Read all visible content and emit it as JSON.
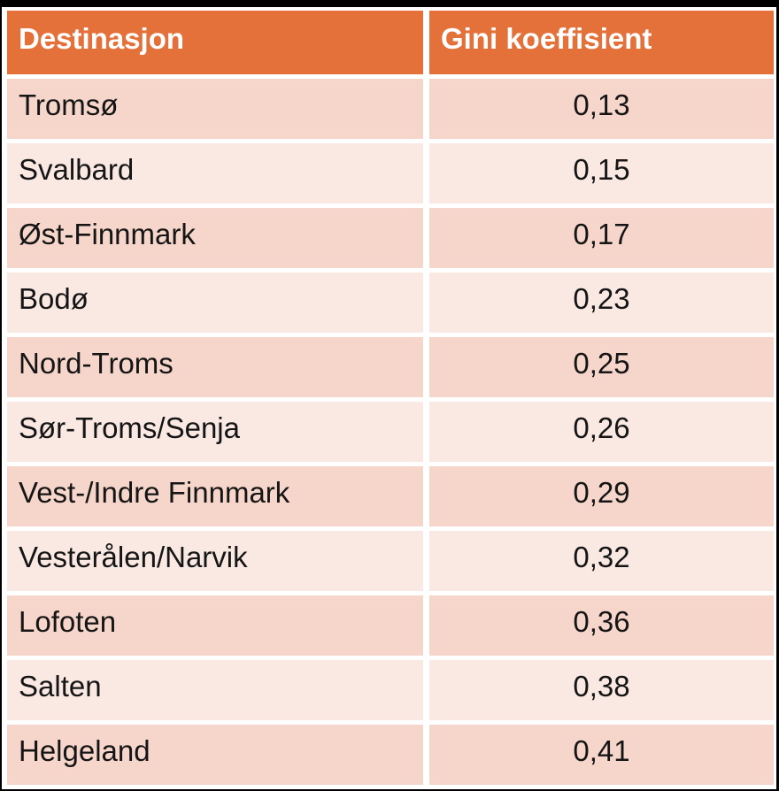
{
  "colors": {
    "header_bg": "#E5713A",
    "header_text": "#FFFFFF",
    "row_odd_bg": "#F6D5CA",
    "row_even_bg": "#FAE8E3",
    "cell_text": "#151515",
    "frame": "#000000"
  },
  "chart_data": {
    "type": "table",
    "columns": [
      "Destinasjon",
      "Gini koeffisient"
    ],
    "rows": [
      [
        "Tromsø",
        "0,13"
      ],
      [
        "Svalbard",
        "0,15"
      ],
      [
        "Øst-Finnmark",
        "0,17"
      ],
      [
        "Bodø",
        "0,23"
      ],
      [
        "Nord-Troms",
        "0,25"
      ],
      [
        "Sør-Troms/Senja",
        "0,26"
      ],
      [
        "Vest-/Indre Finnmark",
        "0,29"
      ],
      [
        "Vesterålen/Narvik",
        "0,32"
      ],
      [
        "Lofoten",
        "0,36"
      ],
      [
        "Salten",
        "0,38"
      ],
      [
        "Helgeland",
        "0,41"
      ]
    ],
    "gini_values_numeric": [
      0.13,
      0.15,
      0.17,
      0.23,
      0.25,
      0.26,
      0.29,
      0.32,
      0.36,
      0.38,
      0.41
    ]
  },
  "table": {
    "header": {
      "destination": "Destinasjon",
      "gini": "Gini koeffisient"
    },
    "rows": [
      {
        "destination": "Tromsø",
        "gini": "0,13"
      },
      {
        "destination": "Svalbard",
        "gini": "0,15"
      },
      {
        "destination": "Øst-Finnmark",
        "gini": "0,17"
      },
      {
        "destination": "Bodø",
        "gini": "0,23"
      },
      {
        "destination": "Nord-Troms",
        "gini": "0,25"
      },
      {
        "destination": "Sør-Troms/Senja",
        "gini": "0,26"
      },
      {
        "destination": "Vest-/Indre Finnmark",
        "gini": "0,29"
      },
      {
        "destination": "Vesterålen/Narvik",
        "gini": "0,32"
      },
      {
        "destination": "Lofoten",
        "gini": "0,36"
      },
      {
        "destination": "Salten",
        "gini": "0,38"
      },
      {
        "destination": "Helgeland",
        "gini": "0,41"
      }
    ]
  }
}
